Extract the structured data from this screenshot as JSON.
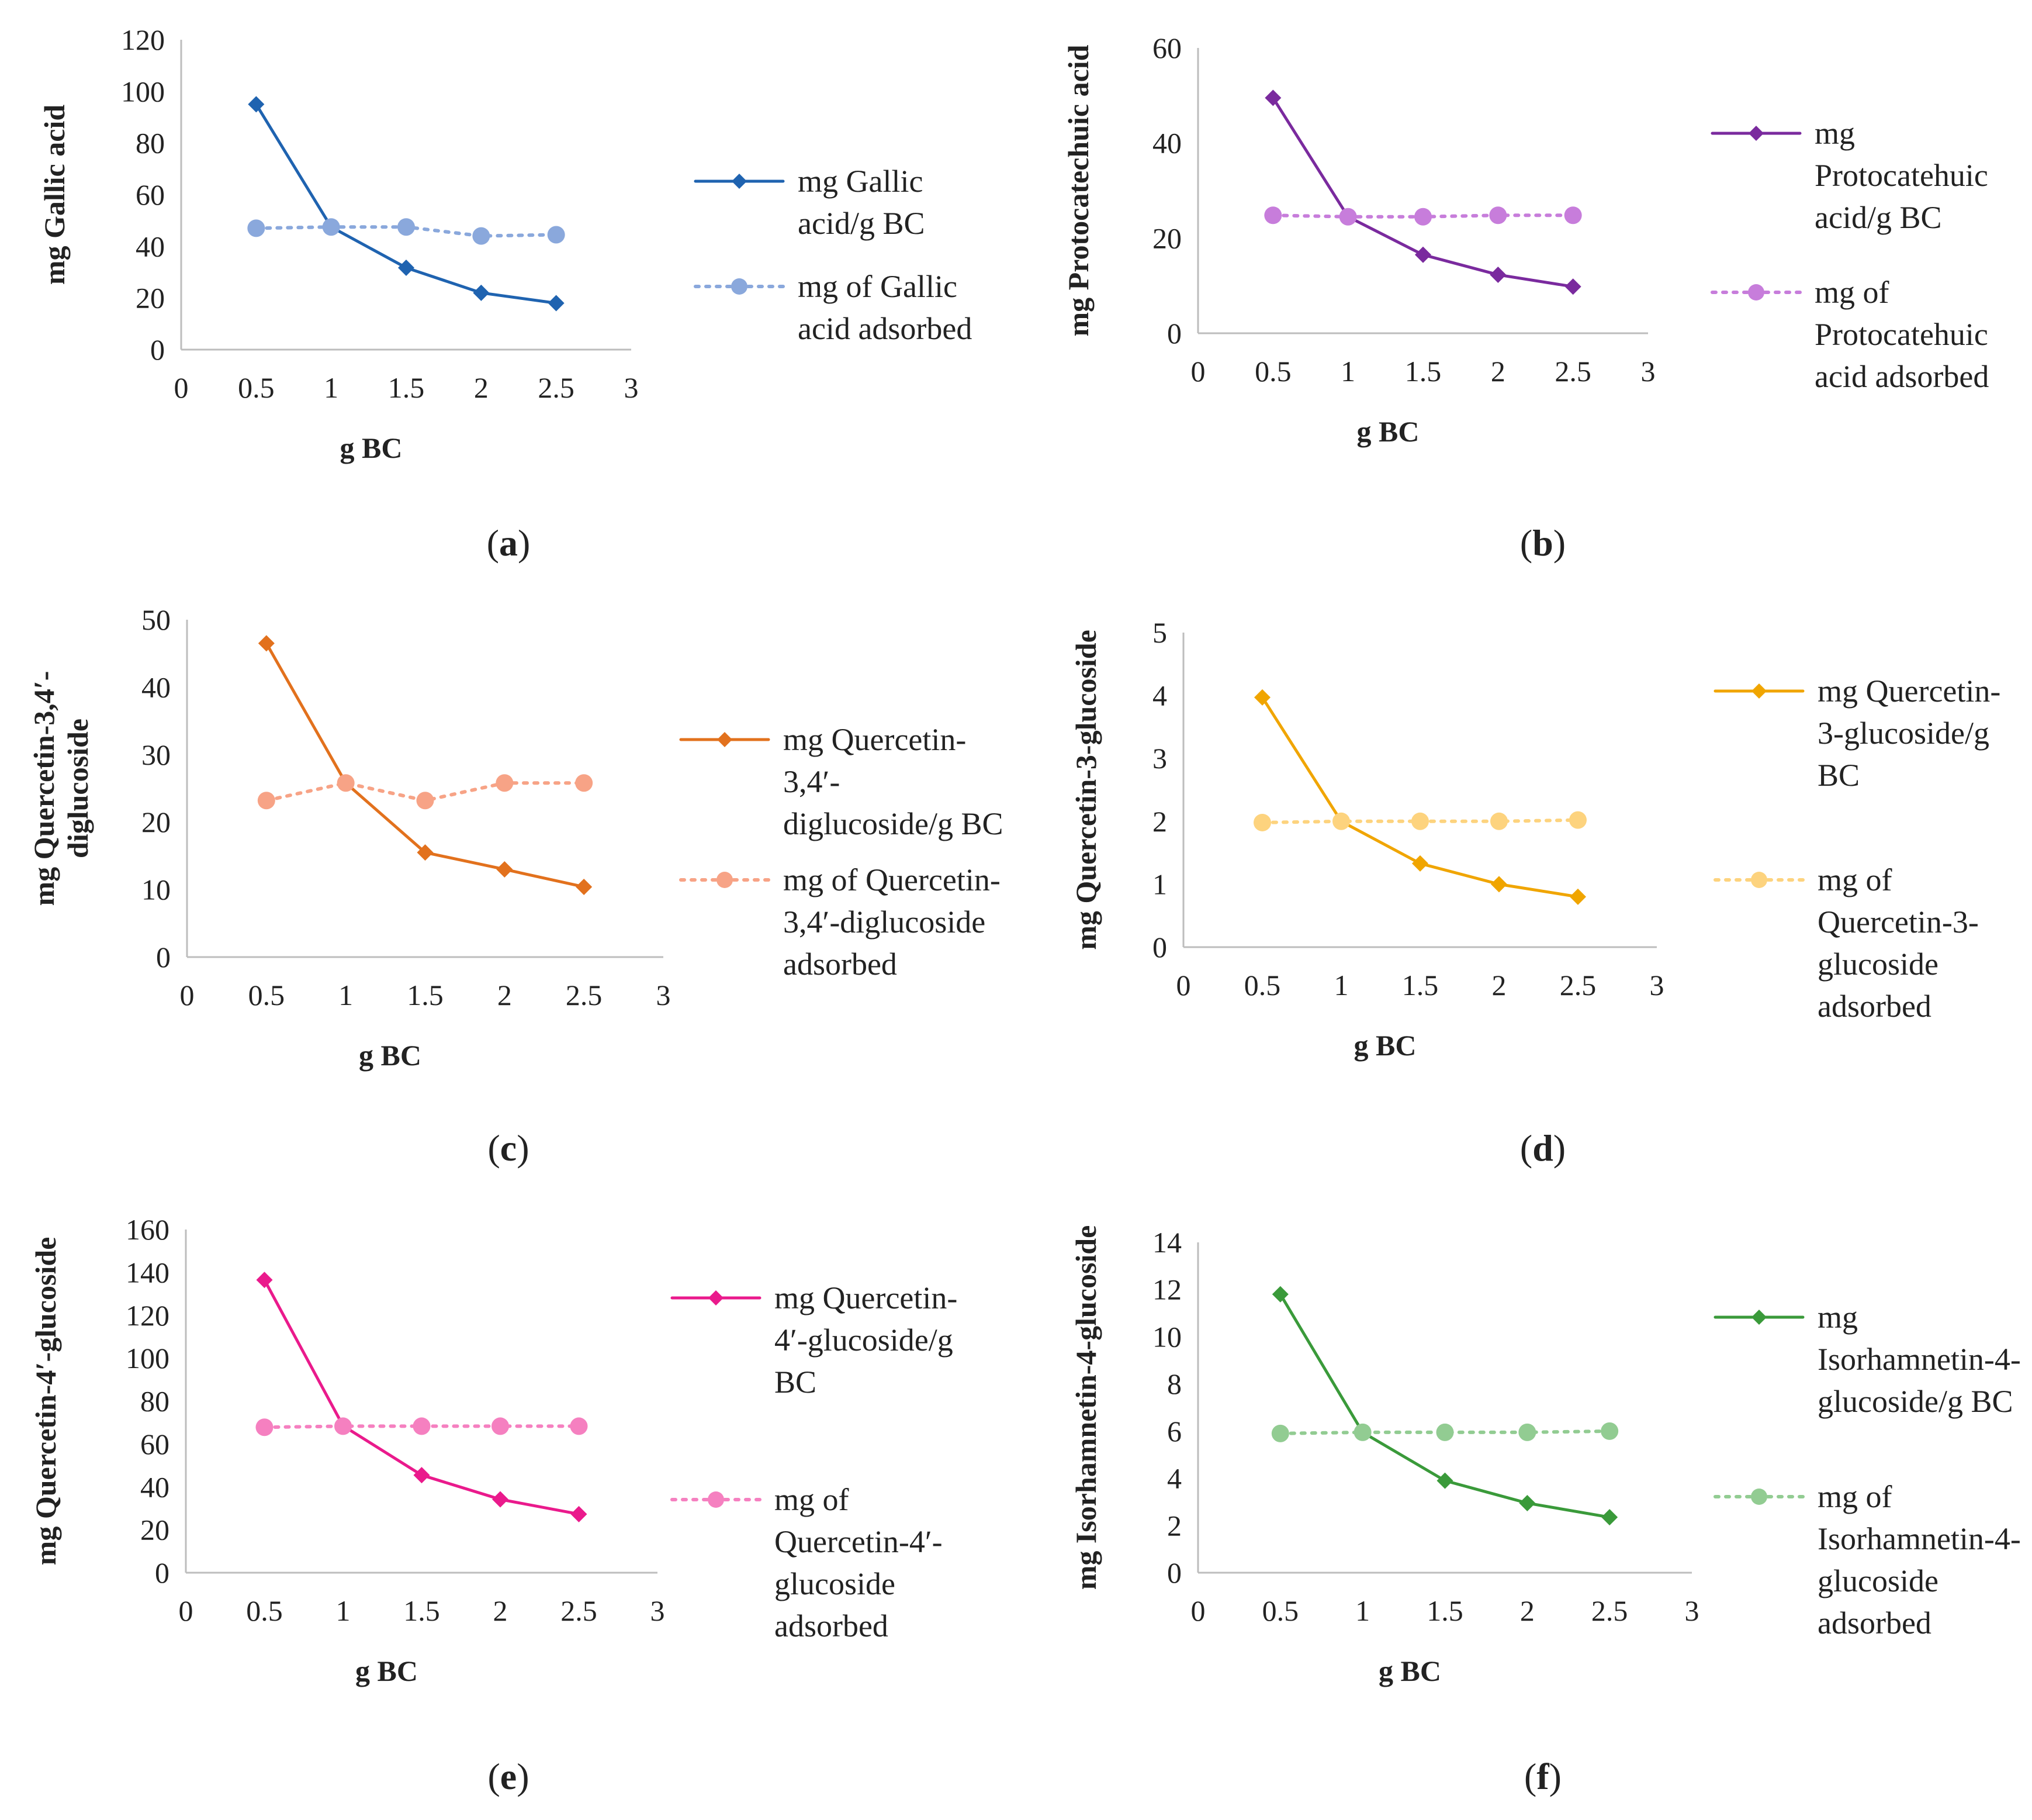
{
  "chart_data": [
    {
      "id": "a",
      "type": "line",
      "panel_label": "a",
      "xlabel": "g BC",
      "ylabel": "mg Gallic acid",
      "x": [
        0.5,
        1,
        1.5,
        2,
        2.5
      ],
      "xlim": [
        0,
        3
      ],
      "xticks": [
        0,
        0.5,
        1,
        1.5,
        2,
        2.5,
        3
      ],
      "ylim": [
        0,
        120
      ],
      "yticks": [
        0,
        20,
        40,
        60,
        80,
        100,
        120
      ],
      "grid": false,
      "series": [
        {
          "name": "mg Gallic acid/g BC",
          "legend_lines": [
            "mg Gallic",
            "acid/g BC"
          ],
          "values": [
            95,
            47.5,
            31.7,
            22,
            18
          ],
          "color": "#1f63b0",
          "marker": "diamond",
          "dashed": false
        },
        {
          "name": "mg of Gallic acid adsorbed",
          "legend_lines": [
            "mg of Gallic",
            "acid adsorbed"
          ],
          "values": [
            47,
            47.5,
            47.5,
            44,
            44.5
          ],
          "color": "#8aa8dc",
          "marker": "circle",
          "dashed": true
        }
      ]
    },
    {
      "id": "b",
      "type": "line",
      "panel_label": "b",
      "xlabel": "g BC",
      "ylabel": "mg Protocatechuic acid",
      "x": [
        0.5,
        1,
        1.5,
        2,
        2.5
      ],
      "xlim": [
        0,
        3
      ],
      "xticks": [
        0,
        0.5,
        1,
        1.5,
        2,
        2.5,
        3
      ],
      "ylim": [
        0,
        60
      ],
      "yticks": [
        0,
        20,
        40,
        60
      ],
      "grid": false,
      "series": [
        {
          "name": "mg Protocatehuic acid/g BC",
          "legend_lines": [
            "mg",
            "Protocatehuic",
            "acid/g BC"
          ],
          "values": [
            49.5,
            24.5,
            16.5,
            12.3,
            9.8
          ],
          "color": "#7a2a9e",
          "marker": "diamond",
          "dashed": false
        },
        {
          "name": "mg of Protocatehuic acid adsorbed",
          "legend_lines": [
            "mg of",
            "Protocatehuic",
            "acid adsorbed"
          ],
          "values": [
            24.8,
            24.5,
            24.5,
            24.8,
            24.8
          ],
          "color": "#c77ddb",
          "marker": "circle",
          "dashed": true
        }
      ]
    },
    {
      "id": "c",
      "type": "line",
      "panel_label": "c",
      "xlabel": "g BC",
      "ylabel": "mg Quercetin-3,4′-diglucoside",
      "ylabel_lines": [
        "mg Quercetin-3,4′-",
        "diglucoside"
      ],
      "x": [
        0.5,
        1,
        1.5,
        2,
        2.5
      ],
      "xlim": [
        0,
        3
      ],
      "xticks": [
        0,
        0.5,
        1,
        1.5,
        2,
        2.5,
        3
      ],
      "ylim": [
        0,
        50
      ],
      "yticks": [
        0,
        10,
        20,
        30,
        40,
        50
      ],
      "grid": false,
      "series": [
        {
          "name": "mg Quercetin-3,4′-diglucoside/g BC",
          "legend_lines": [
            "mg Quercetin-",
            "3,4′-",
            "diglucoside/g BC"
          ],
          "values": [
            46.5,
            25.8,
            15.5,
            13,
            10.4
          ],
          "color": "#e2711d",
          "marker": "diamond",
          "dashed": false
        },
        {
          "name": "mg of Quercetin-3,4′-diglucoside adsorbed",
          "legend_lines": [
            "mg of Quercetin-",
            "3,4′-diglucoside",
            "adsorbed"
          ],
          "values": [
            23.2,
            25.8,
            23.2,
            25.8,
            25.8
          ],
          "color": "#f7a386",
          "marker": "circle",
          "dashed": true
        }
      ]
    },
    {
      "id": "d",
      "type": "line",
      "panel_label": "d",
      "xlabel": "g BC",
      "ylabel": "mg Quercetin-3-glucoside",
      "x": [
        0.5,
        1,
        1.5,
        2,
        2.5
      ],
      "xlim": [
        0,
        3
      ],
      "xticks": [
        0,
        0.5,
        1,
        1.5,
        2,
        2.5,
        3
      ],
      "ylim": [
        0,
        5
      ],
      "yticks": [
        0,
        1,
        2,
        3,
        4,
        5
      ],
      "grid": false,
      "series": [
        {
          "name": "mg Quercetin-3-glucoside/g BC",
          "legend_lines": [
            "mg Quercetin-",
            "3-glucoside/g",
            "BC"
          ],
          "values": [
            3.97,
            2,
            1.33,
            1,
            0.8
          ],
          "color": "#f0a500",
          "marker": "diamond",
          "dashed": false
        },
        {
          "name": "mg of Quercetin-3-glucoside adsorbed",
          "legend_lines": [
            "mg of",
            "Quercetin-3-",
            "glucoside",
            "adsorbed"
          ],
          "values": [
            1.98,
            2,
            2,
            2,
            2.02
          ],
          "color": "#fdd37e",
          "marker": "circle",
          "dashed": true
        }
      ]
    },
    {
      "id": "e",
      "type": "line",
      "panel_label": "e",
      "xlabel": "g BC",
      "ylabel": "mg Quercetin-4′-glucoside",
      "x": [
        0.5,
        1,
        1.5,
        2,
        2.5
      ],
      "xlim": [
        0,
        3
      ],
      "xticks": [
        0,
        0.5,
        1,
        1.5,
        2,
        2.5,
        3
      ],
      "ylim": [
        0,
        160
      ],
      "yticks": [
        0,
        20,
        40,
        60,
        80,
        100,
        120,
        140,
        160
      ],
      "grid": false,
      "series": [
        {
          "name": "mg Quercetin-4′-glucoside/g BC",
          "legend_lines": [
            "mg Quercetin-",
            "4′-glucoside/g",
            "BC"
          ],
          "values": [
            136.5,
            68.5,
            45.5,
            34.2,
            27.3
          ],
          "color": "#ea1a8c",
          "marker": "diamond",
          "dashed": false
        },
        {
          "name": "mg of Quercetin-4′-glucoside adsorbed",
          "legend_lines": [
            "mg of",
            "Quercetin-4′-",
            "glucoside",
            "adsorbed"
          ],
          "values": [
            67.8,
            68.3,
            68.3,
            68.3,
            68.3
          ],
          "color": "#f580c0",
          "marker": "circle",
          "dashed": true
        }
      ]
    },
    {
      "id": "f",
      "type": "line",
      "panel_label": "f",
      "xlabel": "g BC",
      "ylabel": "mg Isorhamnetin-4-glucoside",
      "x": [
        0.5,
        1,
        1.5,
        2,
        2.5
      ],
      "xlim": [
        0,
        3
      ],
      "xticks": [
        0,
        0.5,
        1,
        1.5,
        2,
        2.5,
        3
      ],
      "ylim": [
        0,
        14
      ],
      "yticks": [
        0,
        2,
        4,
        6,
        8,
        10,
        12,
        14
      ],
      "grid": false,
      "series": [
        {
          "name": "mg Isorhamnetin-4-glucoside/g BC",
          "legend_lines": [
            "mg",
            "Isorhamnetin-4-",
            "glucoside/g BC"
          ],
          "values": [
            11.8,
            5.95,
            3.9,
            2.95,
            2.35
          ],
          "color": "#3a9a3a",
          "marker": "diamond",
          "dashed": false
        },
        {
          "name": "mg of Isorhamnetin-4-glucoside adsorbed",
          "legend_lines": [
            "mg of",
            "Isorhamnetin-4-",
            "glucoside",
            "adsorbed"
          ],
          "values": [
            5.9,
            5.95,
            5.95,
            5.95,
            6
          ],
          "color": "#92cc92",
          "marker": "circle",
          "dashed": true
        }
      ]
    }
  ]
}
